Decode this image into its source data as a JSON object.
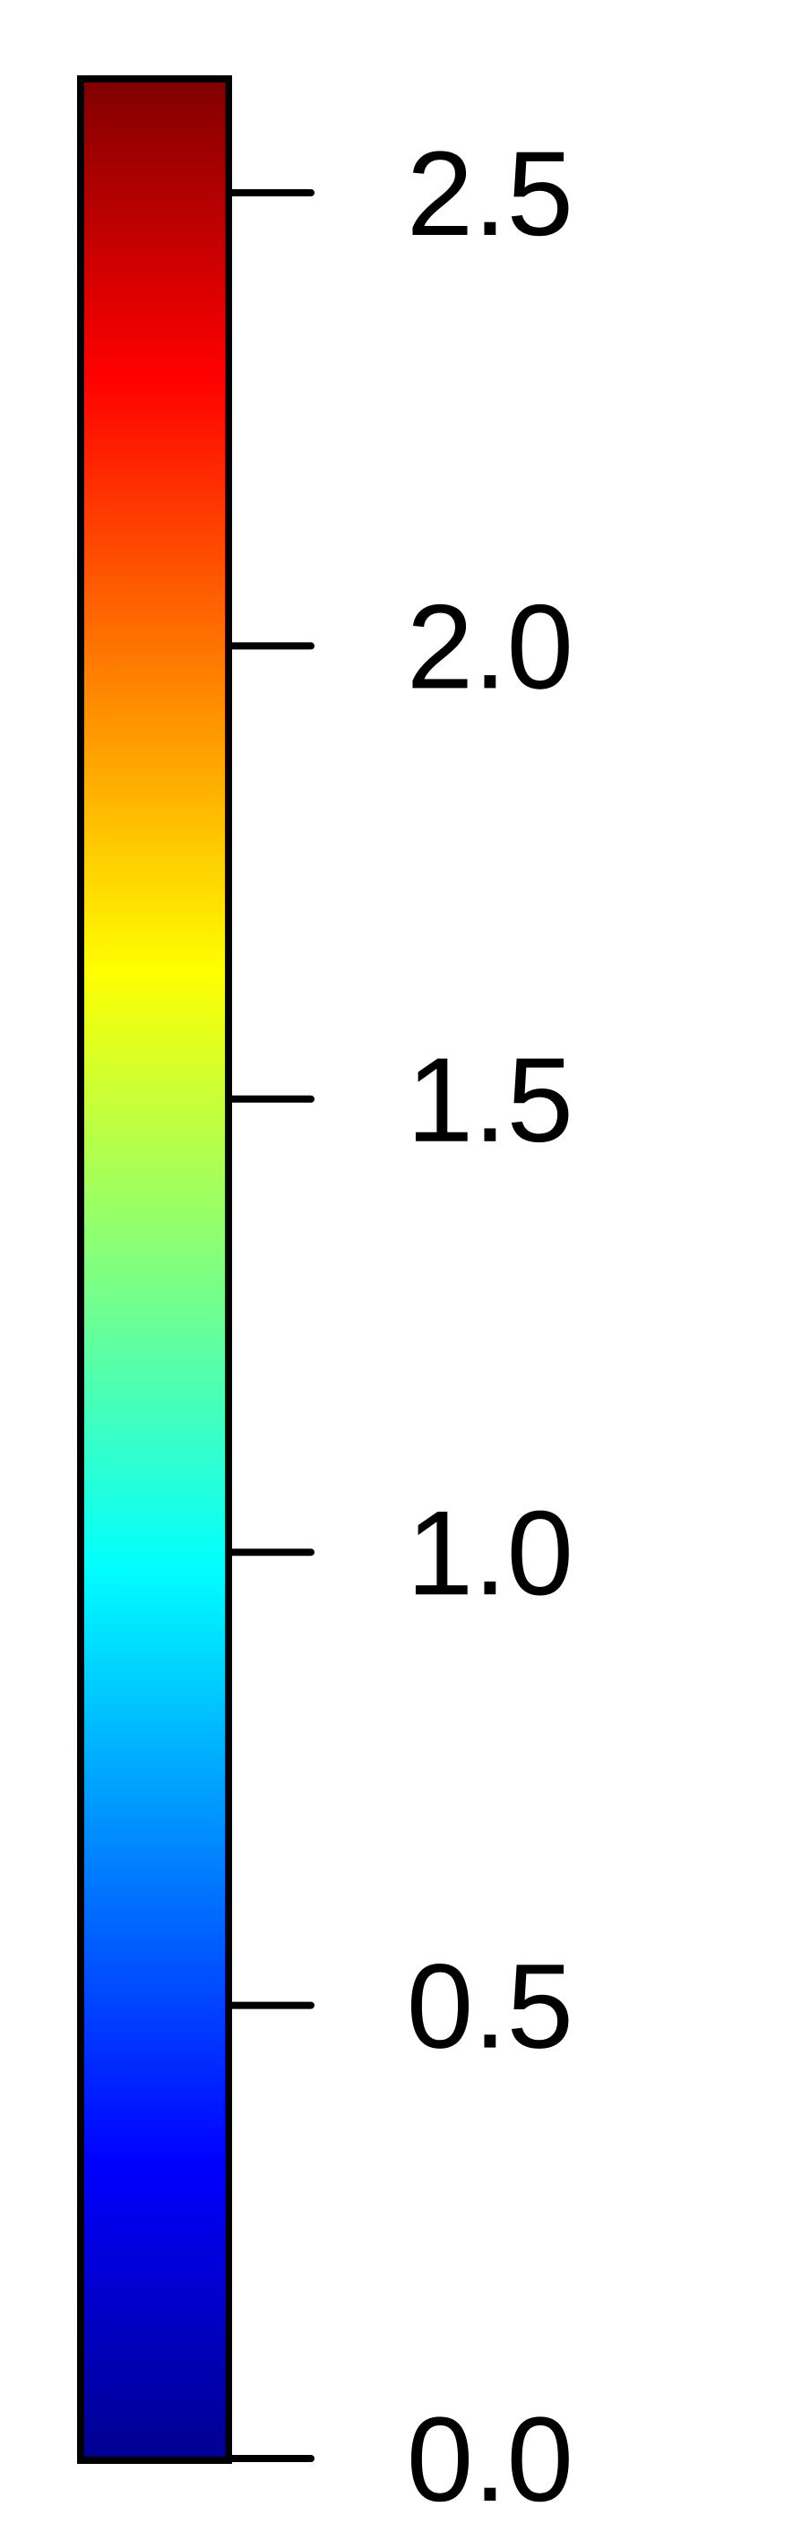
{
  "chart_data": {
    "type": "heatmap",
    "title": "",
    "xlabel": "",
    "ylabel": "",
    "colormap": "jet",
    "range": [
      0.0,
      2.66
    ],
    "colors": [
      "#00008f",
      "#0000ff",
      "#00ffff",
      "#ffff00",
      "#ff0000",
      "#800000"
    ],
    "ticks": [
      {
        "value": 0.0,
        "label": "0.0"
      },
      {
        "value": 0.5,
        "label": "0.5"
      },
      {
        "value": 1.0,
        "label": "1.0"
      },
      {
        "value": 1.5,
        "label": "1.5"
      },
      {
        "value": 2.0,
        "label": "2.0"
      },
      {
        "value": 2.5,
        "label": "2.5"
      }
    ]
  }
}
